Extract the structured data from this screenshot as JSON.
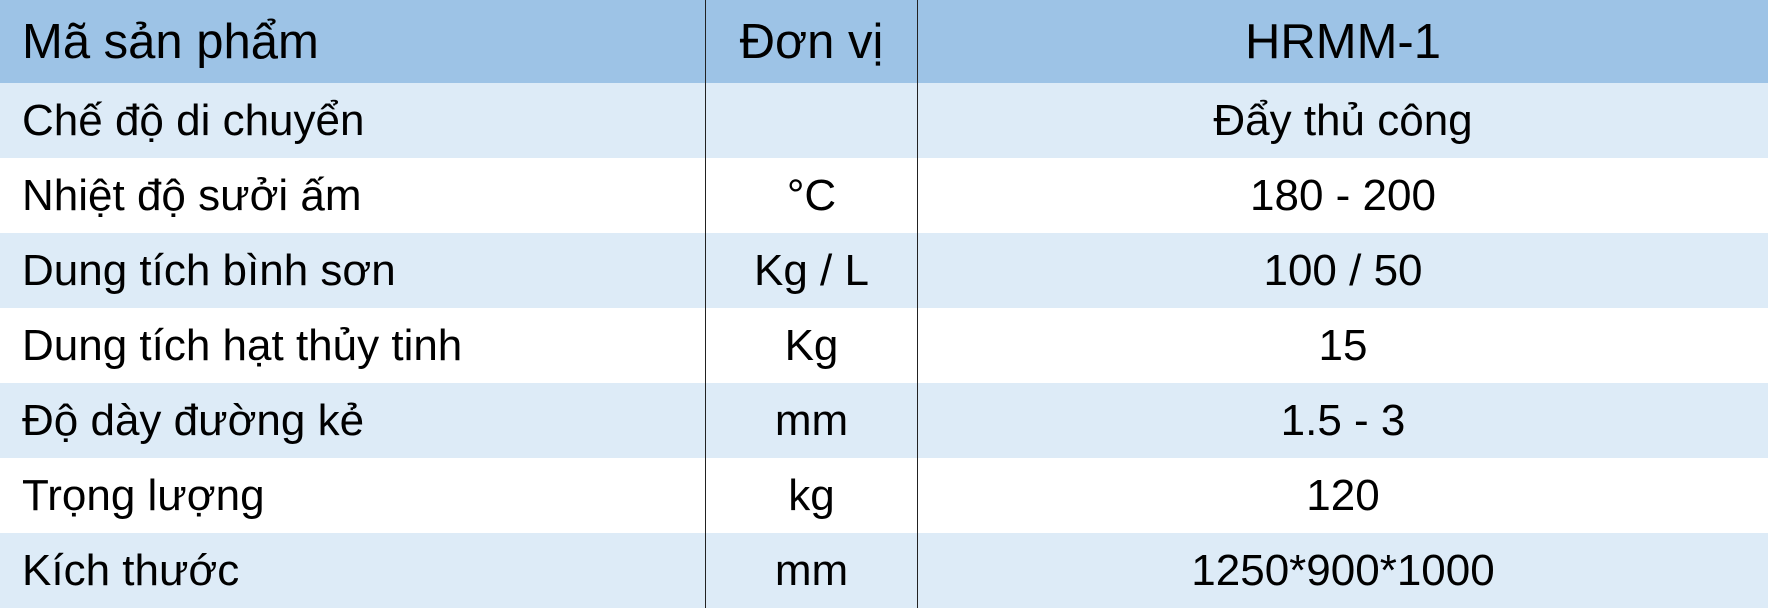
{
  "table": {
    "header": [
      "Mã sản phẩm",
      "Đơn vị",
      "HRMM-1"
    ],
    "rows": [
      [
        "Chế độ di chuyển",
        null,
        "Đẩy thủ công"
      ],
      [
        "Nhiệt độ sưởi ấm",
        "°C",
        "180 - 200"
      ],
      [
        "Dung tích bình sơn",
        "Kg / L",
        "100 / 50"
      ],
      [
        "Dung tích hạt thủy tinh",
        "Kg",
        "15"
      ],
      [
        "Độ dày đường kẻ",
        "mm",
        "1.5 - 3"
      ],
      [
        "Trọng lượng",
        "kg",
        "120"
      ],
      [
        "Kích thước",
        "mm",
        "1250*900*1000"
      ]
    ]
  }
}
